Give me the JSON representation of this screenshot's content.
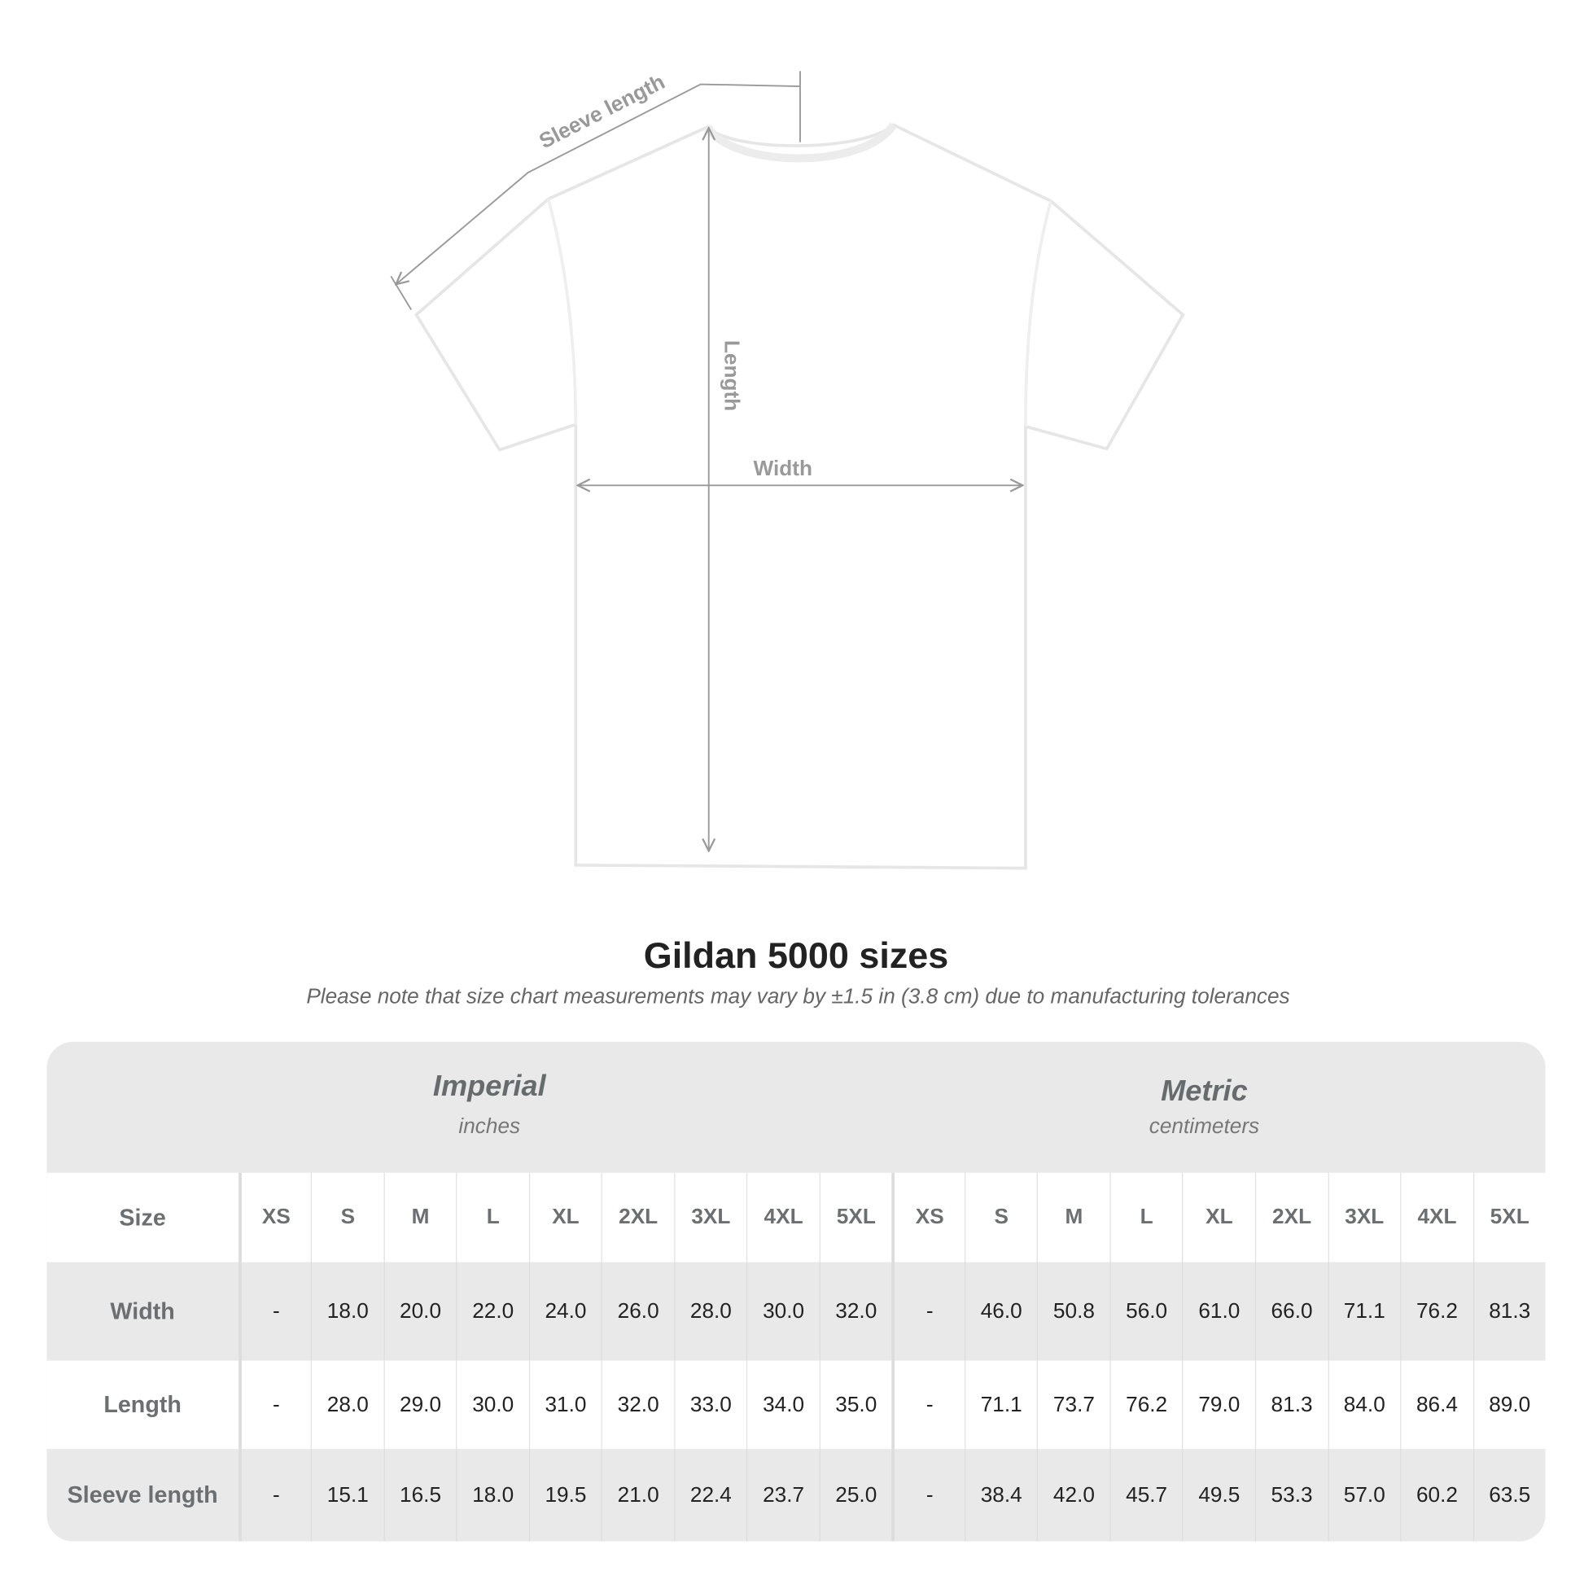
{
  "diagram": {
    "labels": {
      "sleeve": "Sleeve length",
      "length": "Length",
      "width": "Width"
    },
    "line_color": "#999999"
  },
  "title": "Gildan 5000 sizes",
  "note": "Please note that size chart measurements may vary by ±1.5 in (3.8 cm) due to manufacturing tolerances",
  "table": {
    "imperial": {
      "name": "Imperial",
      "unit": "inches"
    },
    "metric": {
      "name": "Metric",
      "unit": "centimeters"
    },
    "size_label": "Size",
    "sizes": [
      "XS",
      "S",
      "M",
      "L",
      "XL",
      "2XL",
      "3XL",
      "4XL",
      "5XL",
      "XS",
      "S",
      "M",
      "L",
      "XL",
      "2XL",
      "3XL",
      "4XL",
      "5XL"
    ],
    "rows": [
      {
        "label": "Width",
        "values": [
          "-",
          "18.0",
          "20.0",
          "22.0",
          "24.0",
          "26.0",
          "28.0",
          "30.0",
          "32.0",
          "-",
          "46.0",
          "50.8",
          "56.0",
          "61.0",
          "66.0",
          "71.1",
          "76.2",
          "81.3"
        ]
      },
      {
        "label": "Length",
        "values": [
          "-",
          "28.0",
          "29.0",
          "30.0",
          "31.0",
          "32.0",
          "33.0",
          "34.0",
          "35.0",
          "-",
          "71.1",
          "73.7",
          "76.2",
          "79.0",
          "81.3",
          "84.0",
          "86.4",
          "89.0"
        ]
      },
      {
        "label": "Sleeve length",
        "values": [
          "-",
          "15.1",
          "16.5",
          "18.0",
          "19.5",
          "21.0",
          "22.4",
          "23.7",
          "25.0",
          "-",
          "38.4",
          "42.0",
          "45.7",
          "49.5",
          "53.3",
          "57.0",
          "60.2",
          "63.5"
        ]
      }
    ]
  }
}
